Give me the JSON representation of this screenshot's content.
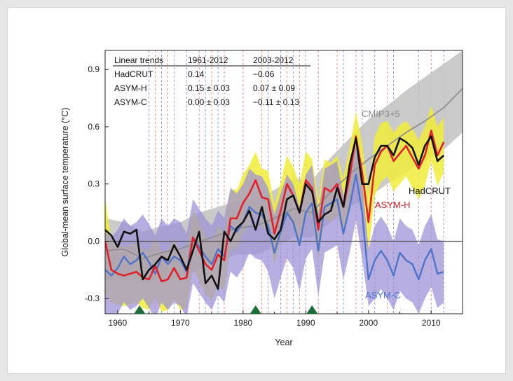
{
  "chart_data": {
    "type": "line",
    "xlabel": "Year",
    "ylabel": "Global-mean surface temperature (°C)",
    "xlim": [
      1958,
      2015
    ],
    "ylim": [
      -0.38,
      1.0
    ],
    "x_ticks": [
      1960,
      1970,
      1980,
      1990,
      2000,
      2010
    ],
    "y_ticks": [
      -0.3,
      0.0,
      0.3,
      0.6,
      0.9
    ],
    "x_tick_labels": [
      "1960",
      "1970",
      "1980",
      "1990",
      "2000",
      "2010"
    ],
    "y_tick_labels": [
      "-0.3",
      "0.0",
      "0.3",
      "0.6",
      "0.9"
    ],
    "zero_line": 0,
    "table": {
      "headers": [
        "Linear trends",
        "1961-2012",
        "2003-2012"
      ],
      "rows": [
        [
          "HadCRUT",
          "0.14",
          "−0.06"
        ],
        [
          "ASYM-H",
          "0.15 ± 0.03",
          "0.07 ± 0.09"
        ],
        [
          "ASYM-C",
          "0.00 ± 0.03",
          "−0.11 ± 0.13"
        ]
      ]
    },
    "eruption_markers": [
      1963.5,
      1982,
      1991
    ],
    "marker_color": "#1e6b3a",
    "red_vlines": [
      1966,
      1968,
      1973,
      1975,
      1977,
      1980,
      1983,
      1987,
      1989,
      1992,
      1995,
      1998,
      2003,
      2010
    ],
    "blue_vlines": [
      1965,
      1967,
      1969,
      1971,
      1974,
      1976,
      1984,
      1986,
      1988,
      1990,
      1996,
      1999,
      2001,
      2004,
      2008,
      2012
    ],
    "vline_colors": {
      "red": "#e8868c",
      "blue": "#8e95d8"
    },
    "series": [
      {
        "name": "CMIP3+5",
        "color": "#8f8f8f",
        "band_color": "#c4c4c4",
        "x": [
          1958,
          1961,
          1964,
          1967,
          1970,
          1973,
          1976,
          1979,
          1982,
          1985,
          1988,
          1991,
          1994,
          1997,
          2000,
          2003,
          2006,
          2009,
          2012,
          2015
        ],
        "values": [
          -0.05,
          -0.04,
          -0.09,
          -0.06,
          -0.04,
          0.0,
          0.03,
          0.07,
          0.08,
          0.12,
          0.17,
          0.15,
          0.26,
          0.35,
          0.43,
          0.5,
          0.57,
          0.63,
          0.7,
          0.8
        ],
        "lower": [
          -0.2,
          -0.2,
          -0.22,
          -0.2,
          -0.19,
          -0.15,
          -0.11,
          -0.07,
          -0.07,
          -0.03,
          0.02,
          0.02,
          0.1,
          0.18,
          0.23,
          0.3,
          0.36,
          0.42,
          0.48,
          0.57
        ],
        "upper": [
          0.12,
          0.1,
          0.05,
          0.08,
          0.1,
          0.15,
          0.18,
          0.21,
          0.22,
          0.27,
          0.33,
          0.32,
          0.44,
          0.54,
          0.64,
          0.71,
          0.79,
          0.86,
          0.93,
          1.0
        ]
      },
      {
        "name": "ASYM-H",
        "color": "#e0202a",
        "band_color": "#f0ec3c",
        "x": [
          1958,
          1959,
          1960,
          1961,
          1962,
          1963,
          1964,
          1965,
          1966,
          1967,
          1968,
          1969,
          1970,
          1971,
          1972,
          1973,
          1974,
          1975,
          1976,
          1977,
          1978,
          1979,
          1980,
          1981,
          1982,
          1983,
          1984,
          1985,
          1986,
          1987,
          1988,
          1989,
          1990,
          1991,
          1992,
          1993,
          1994,
          1995,
          1996,
          1997,
          1998,
          1999,
          2000,
          2001,
          2002,
          2003,
          2004,
          2005,
          2006,
          2007,
          2008,
          2009,
          2010,
          2011,
          2012
        ],
        "values": [
          0.0,
          -0.15,
          -0.17,
          -0.18,
          -0.17,
          -0.16,
          -0.19,
          -0.2,
          -0.13,
          -0.21,
          -0.2,
          -0.14,
          -0.2,
          -0.19,
          0.02,
          -0.05,
          -0.12,
          -0.15,
          -0.07,
          -0.1,
          0.12,
          0.12,
          0.2,
          0.25,
          0.32,
          0.23,
          0.22,
          0.04,
          0.16,
          0.3,
          0.24,
          0.15,
          0.32,
          0.28,
          0.06,
          0.28,
          0.26,
          0.3,
          0.18,
          0.34,
          0.55,
          0.36,
          0.1,
          0.4,
          0.47,
          0.5,
          0.42,
          0.46,
          0.5,
          0.44,
          0.38,
          0.45,
          0.58,
          0.45,
          0.52
        ],
        "lower": [
          -0.27,
          -0.32,
          -0.33,
          -0.34,
          -0.33,
          -0.32,
          -0.35,
          -0.36,
          -0.29,
          -0.37,
          -0.36,
          -0.3,
          -0.36,
          -0.35,
          -0.14,
          -0.21,
          -0.28,
          -0.31,
          -0.23,
          -0.26,
          -0.04,
          -0.04,
          0.04,
          0.09,
          0.16,
          0.07,
          0.06,
          -0.12,
          0.0,
          0.14,
          0.08,
          -0.01,
          0.16,
          0.12,
          -0.1,
          0.12,
          0.1,
          0.14,
          0.02,
          0.18,
          0.39,
          0.2,
          -0.06,
          0.24,
          0.31,
          0.34,
          0.26,
          0.3,
          0.34,
          0.28,
          0.22,
          0.29,
          0.42,
          0.29,
          0.36
        ],
        "upper": [
          0.23,
          0.0,
          -0.02,
          -0.03,
          -0.02,
          -0.01,
          -0.04,
          -0.05,
          0.02,
          -0.06,
          -0.05,
          0.01,
          -0.05,
          -0.04,
          0.17,
          0.1,
          0.03,
          0.0,
          0.08,
          0.05,
          0.27,
          0.27,
          0.35,
          0.4,
          0.47,
          0.38,
          0.37,
          0.19,
          0.31,
          0.45,
          0.39,
          0.3,
          0.47,
          0.43,
          0.21,
          0.43,
          0.41,
          0.45,
          0.33,
          0.49,
          0.68,
          0.51,
          0.25,
          0.55,
          0.62,
          0.63,
          0.57,
          0.61,
          0.63,
          0.59,
          0.53,
          0.6,
          0.71,
          0.6,
          0.65
        ]
      },
      {
        "name": "ASYM-C",
        "color": "#4f73c9",
        "band_color": "#9b8fd6",
        "x": [
          1958,
          1959,
          1960,
          1961,
          1962,
          1963,
          1964,
          1965,
          1966,
          1967,
          1968,
          1969,
          1970,
          1971,
          1972,
          1973,
          1974,
          1975,
          1976,
          1977,
          1978,
          1979,
          1980,
          1981,
          1982,
          1983,
          1984,
          1985,
          1986,
          1987,
          1988,
          1989,
          1990,
          1991,
          1992,
          1993,
          1994,
          1995,
          1996,
          1997,
          1998,
          1999,
          2000,
          2001,
          2002,
          2003,
          2004,
          2005,
          2006,
          2007,
          2008,
          2009,
          2010,
          2011,
          2012
        ],
        "values": [
          -0.15,
          -0.18,
          -0.14,
          -0.08,
          -0.12,
          -0.1,
          -0.06,
          -0.11,
          -0.17,
          -0.08,
          -0.12,
          -0.08,
          -0.1,
          -0.16,
          0.02,
          -0.03,
          -0.08,
          -0.12,
          -0.04,
          -0.08,
          0.08,
          0.05,
          0.1,
          0.18,
          0.15,
          0.14,
          0.08,
          -0.06,
          0.05,
          0.15,
          0.1,
          -0.02,
          0.15,
          0.2,
          -0.05,
          0.18,
          0.2,
          0.22,
          0.04,
          0.18,
          0.35,
          0.15,
          -0.2,
          -0.1,
          -0.05,
          -0.1,
          -0.18,
          -0.06,
          -0.1,
          -0.12,
          -0.2,
          -0.1,
          -0.04,
          -0.17,
          -0.16
        ],
        "lower": [
          -0.4,
          -0.42,
          -0.38,
          -0.32,
          -0.36,
          -0.34,
          -0.3,
          -0.35,
          -0.41,
          -0.32,
          -0.36,
          -0.32,
          -0.34,
          -0.4,
          -0.22,
          -0.27,
          -0.32,
          -0.36,
          -0.28,
          -0.32,
          -0.16,
          -0.19,
          -0.14,
          -0.06,
          -0.09,
          -0.1,
          -0.16,
          -0.3,
          -0.19,
          -0.09,
          -0.14,
          -0.26,
          -0.09,
          -0.04,
          -0.29,
          -0.06,
          -0.04,
          -0.02,
          -0.2,
          -0.06,
          0.11,
          -0.09,
          -0.34,
          -0.3,
          -0.25,
          -0.3,
          -0.36,
          -0.26,
          -0.3,
          -0.32,
          -0.38,
          -0.3,
          -0.24,
          -0.35,
          -0.32
        ],
        "upper": [
          0.05,
          0.02,
          0.06,
          0.12,
          0.08,
          0.1,
          0.14,
          0.09,
          0.03,
          0.12,
          0.08,
          0.12,
          0.1,
          0.04,
          0.22,
          0.17,
          0.12,
          0.08,
          0.16,
          0.12,
          0.28,
          0.25,
          0.3,
          0.38,
          0.35,
          0.34,
          0.28,
          0.14,
          0.25,
          0.35,
          0.3,
          0.18,
          0.35,
          0.4,
          0.15,
          0.38,
          0.4,
          0.42,
          0.24,
          0.38,
          0.5,
          0.32,
          -0.04,
          0.08,
          0.13,
          0.08,
          0.0,
          0.12,
          0.08,
          0.06,
          -0.02,
          0.08,
          0.14,
          0.01,
          0.0
        ]
      },
      {
        "name": "HadCRUT",
        "color": "#111111",
        "x": [
          1958,
          1959,
          1960,
          1961,
          1962,
          1963,
          1964,
          1965,
          1966,
          1967,
          1968,
          1969,
          1970,
          1971,
          1972,
          1973,
          1974,
          1975,
          1976,
          1977,
          1978,
          1979,
          1980,
          1981,
          1982,
          1983,
          1984,
          1985,
          1986,
          1987,
          1988,
          1989,
          1990,
          1991,
          1992,
          1993,
          1994,
          1995,
          1996,
          1997,
          1998,
          1999,
          2000,
          2001,
          2002,
          2003,
          2004,
          2005,
          2006,
          2007,
          2008,
          2009,
          2010,
          2011,
          2012
        ],
        "values": [
          0.06,
          0.03,
          -0.03,
          0.05,
          0.04,
          0.06,
          -0.2,
          -0.15,
          -0.12,
          -0.08,
          -0.1,
          -0.02,
          -0.08,
          -0.15,
          -0.05,
          0.05,
          -0.22,
          -0.18,
          -0.25,
          0.05,
          0.0,
          0.07,
          0.1,
          0.16,
          0.06,
          0.18,
          0.04,
          0.01,
          0.06,
          0.22,
          0.24,
          0.15,
          0.3,
          0.26,
          0.1,
          0.14,
          0.16,
          0.28,
          0.18,
          0.4,
          0.54,
          0.3,
          0.3,
          0.44,
          0.5,
          0.5,
          0.45,
          0.54,
          0.52,
          0.49,
          0.4,
          0.5,
          0.55,
          0.42,
          0.45
        ]
      }
    ],
    "labels": {
      "CMIP3+5": "CMIP3+5",
      "HadCRUT": "HadCRUT",
      "ASYM-H": "ASYM-H",
      "ASYM-C": "ASYM-C"
    }
  }
}
